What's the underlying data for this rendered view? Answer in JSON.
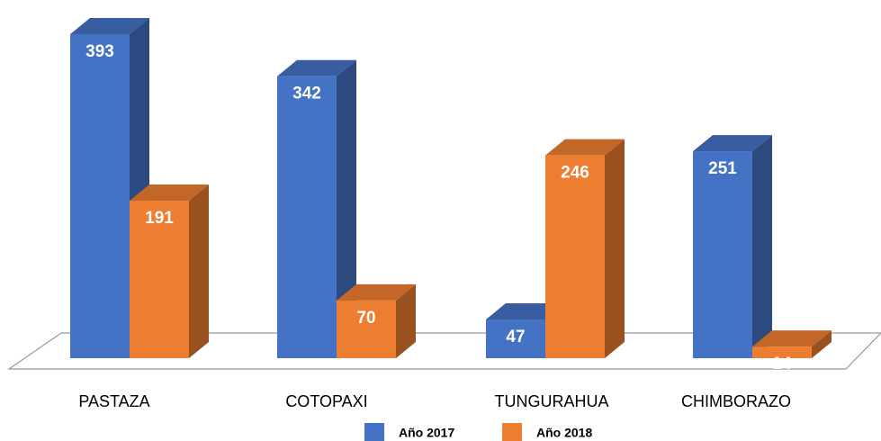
{
  "chart_data": {
    "type": "bar3d",
    "categories": [
      "PASTAZA",
      "COTOPAXI",
      "TUNGURAHUA",
      "CHIMBORAZO"
    ],
    "series": [
      {
        "name": "Año 2017",
        "color": "#4472c4",
        "values": [
          393,
          342,
          47,
          251
        ]
      },
      {
        "name": "Año 2018",
        "color": "#ed7d31",
        "values": [
          191,
          70,
          246,
          14
        ]
      }
    ],
    "legend": "bottom"
  }
}
